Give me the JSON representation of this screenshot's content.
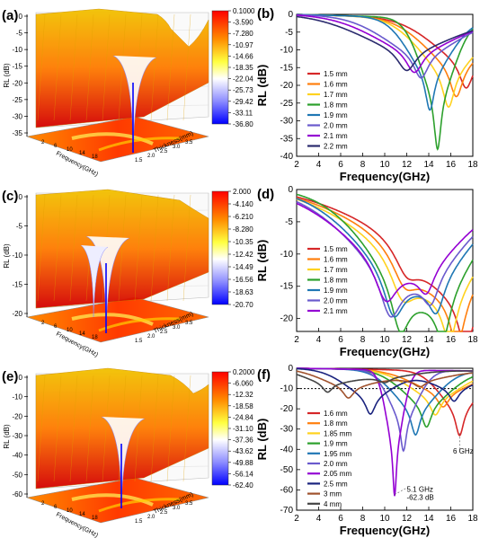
{
  "panels_3d": [
    {
      "letter": "(a)",
      "zlabel": "RL (dB)",
      "xlabel": "Frequency(GHz)",
      "ylabel": "Thickness(mm)",
      "colorbar": [
        "0.1000",
        "-3.590",
        "-7.280",
        "-10.97",
        "-14.66",
        "-18.35",
        "-22.04",
        "-25.73",
        "-29.42",
        "-33.11",
        "-36.80"
      ],
      "zticks": [
        "0",
        "-5",
        "-10",
        "-15",
        "-20",
        "-25",
        "-30",
        "-35"
      ]
    },
    {
      "letter": "(c)",
      "zlabel": "RL (dB)",
      "xlabel": "Frequency(GHz)",
      "ylabel": "Thickness(mm)",
      "colorbar": [
        "2.000",
        "-4.140",
        "-6.210",
        "-8.280",
        "-10.35",
        "-12.42",
        "-14.49",
        "-16.56",
        "-18.63",
        "-20.70"
      ],
      "zticks": [
        "0",
        "-5",
        "-10",
        "-15",
        "-20"
      ]
    },
    {
      "letter": "(e)",
      "zlabel": "RL (dB)",
      "xlabel": "Frequency(GHz)",
      "ylabel": "Thickness(mm)",
      "colorbar": [
        "0.2000",
        "-6.060",
        "-12.32",
        "-18.58",
        "-24.84",
        "-31.10",
        "-37.36",
        "-43.62",
        "-49.88",
        "-56.14",
        "-62.40"
      ],
      "zticks": [
        "0",
        "-10",
        "-20",
        "-30",
        "-40",
        "-50",
        "-60"
      ]
    }
  ],
  "chart_data": [
    {
      "panel": "(b)",
      "type": "line",
      "xlabel": "Frequency(GHz)",
      "ylabel": "RL (dB)",
      "xlim": [
        2,
        18
      ],
      "ylim": [
        -40,
        0
      ],
      "xticks": [
        2,
        4,
        6,
        8,
        10,
        12,
        14,
        16,
        18
      ],
      "yticks": [
        0,
        -5,
        -10,
        -15,
        -20,
        -25,
        -30,
        -35,
        -40
      ],
      "legend_position": "left",
      "series": [
        {
          "name": "1.5 mm",
          "color": "#d62728",
          "dips": [
            [
              17.4,
              -19.5,
              1.4
            ]
          ]
        },
        {
          "name": "1.6 mm",
          "color": "#ff7f0e",
          "dips": [
            [
              16.5,
              -22,
              1.3
            ]
          ]
        },
        {
          "name": "1.7 mm",
          "color": "#ffd21f",
          "dips": [
            [
              15.8,
              -25,
              1.2
            ]
          ]
        },
        {
          "name": "1.8 mm",
          "color": "#2ca02c",
          "dips": [
            [
              14.8,
              -37,
              0.7
            ]
          ]
        },
        {
          "name": "1.9 mm",
          "color": "#1f77b4",
          "dips": [
            [
              14.1,
              -26,
              0.9
            ]
          ]
        },
        {
          "name": "2.0 mm",
          "color": "#6a5acd",
          "dips": [
            [
              13.3,
              -17,
              1.5
            ]
          ]
        },
        {
          "name": "2.1 mm",
          "color": "#9400d3",
          "dips": [
            [
              12.7,
              -15.5,
              1.7
            ]
          ]
        },
        {
          "name": "2.2 mm",
          "color": "#2b2b6e",
          "dips": [
            [
              12.0,
              -15,
              1.9
            ]
          ]
        }
      ]
    },
    {
      "panel": "(d)",
      "type": "line",
      "xlabel": "Frequency(GHz)",
      "ylabel": "RL (dB)",
      "xlim": [
        2,
        18
      ],
      "ylim": [
        -22,
        0
      ],
      "xticks": [
        2,
        4,
        6,
        8,
        10,
        12,
        14,
        16,
        18
      ],
      "yticks": [
        0,
        -5,
        -10,
        -15,
        -20
      ],
      "legend_position": "left",
      "series": [
        {
          "name": "1.5 mm",
          "color": "#d62728",
          "dips": [
            [
              17.4,
              -20,
              1.6
            ],
            [
              12.0,
              -9,
              2.5
            ]
          ]
        },
        {
          "name": "1.6 mm",
          "color": "#ff7f0e",
          "dips": [
            [
              16.6,
              -18.5,
              1.6
            ],
            [
              11.8,
              -10,
              2.5
            ]
          ]
        },
        {
          "name": "1.7 mm",
          "color": "#ffd21f",
          "dips": [
            [
              15.9,
              -17,
              1.5
            ],
            [
              11.6,
              -12,
              2.4
            ]
          ]
        },
        {
          "name": "1.8 mm",
          "color": "#2ca02c",
          "dips": [
            [
              15.3,
              -16,
              1.5
            ],
            [
              11.4,
              -16.5,
              1.8
            ]
          ]
        },
        {
          "name": "1.9 mm",
          "color": "#1f77b4",
          "dips": [
            [
              14.7,
              -12,
              1.6
            ],
            [
              10.8,
              -15,
              2.0
            ]
          ]
        },
        {
          "name": "2.0 mm",
          "color": "#6a5acd",
          "dips": [
            [
              14.2,
              -10,
              1.6
            ],
            [
              10.5,
              -15.5,
              2.1
            ]
          ]
        },
        {
          "name": "2.1 mm",
          "color": "#9400d3",
          "dips": [
            [
              13.8,
              -9,
              1.6
            ],
            [
              10.1,
              -13.5,
              2.2
            ]
          ]
        }
      ]
    },
    {
      "panel": "(f)",
      "type": "line",
      "xlabel": "Frequency(GHz)",
      "ylabel": "RL (dB)",
      "xlim": [
        2,
        18
      ],
      "ylim": [
        -70,
        0
      ],
      "xticks": [
        2,
        4,
        6,
        8,
        10,
        12,
        14,
        16,
        18
      ],
      "yticks": [
        0,
        -10,
        -20,
        -30,
        -40,
        -50,
        -60,
        -70
      ],
      "reference_line": -10,
      "legend_position": "left",
      "annotations": [
        {
          "text": "6 GHz",
          "x": 16.2,
          "y": -42
        },
        {
          "text": "5.1 GHz",
          "x": 12.0,
          "y": -61
        },
        {
          "text": "-62.3 dB",
          "x": 12.0,
          "y": -65
        }
      ],
      "series": [
        {
          "name": "1.6 mm",
          "color": "#d62728",
          "dips": [
            [
              16.8,
              -32,
              0.8
            ]
          ]
        },
        {
          "name": "1.8 mm",
          "color": "#ff7f0e",
          "dips": [
            [
              15.3,
              -18,
              1.2
            ]
          ]
        },
        {
          "name": "1.85 mm",
          "color": "#ffd21f",
          "dips": [
            [
              14.6,
              -22,
              1.1
            ]
          ]
        },
        {
          "name": "1.9 mm",
          "color": "#2ca02c",
          "dips": [
            [
              13.8,
              -28,
              1.0
            ]
          ]
        },
        {
          "name": "1.95 mm",
          "color": "#1f77b4",
          "dips": [
            [
              12.8,
              -32,
              0.9
            ]
          ]
        },
        {
          "name": "2.0 mm",
          "color": "#6a5acd",
          "dips": [
            [
              11.7,
              -40,
              0.6
            ]
          ]
        },
        {
          "name": "2.05 mm",
          "color": "#9400d3",
          "dips": [
            [
              10.9,
              -62.3,
              0.35
            ]
          ]
        },
        {
          "name": "2.5 mm",
          "color": "#1a237e",
          "dips": [
            [
              8.7,
              -22,
              1.0
            ],
            [
              16.3,
              -15,
              1.0
            ]
          ]
        },
        {
          "name": "3 mm",
          "color": "#a0522d",
          "dips": [
            [
              6.7,
              -14,
              1.1
            ],
            [
              13.2,
              -8,
              1.2
            ]
          ]
        },
        {
          "name": "4 mm",
          "color": "#444444",
          "dips": [
            [
              4.8,
              -11,
              1.0
            ],
            [
              10.0,
              -6,
              1.2
            ]
          ]
        }
      ]
    }
  ],
  "colors": {
    "surface_top": "#f2c200",
    "surface_mid": "#ff7a00",
    "surface_low": "#d40000",
    "surface_min": "#0000ff",
    "floor_bg": "#ff3a00"
  }
}
